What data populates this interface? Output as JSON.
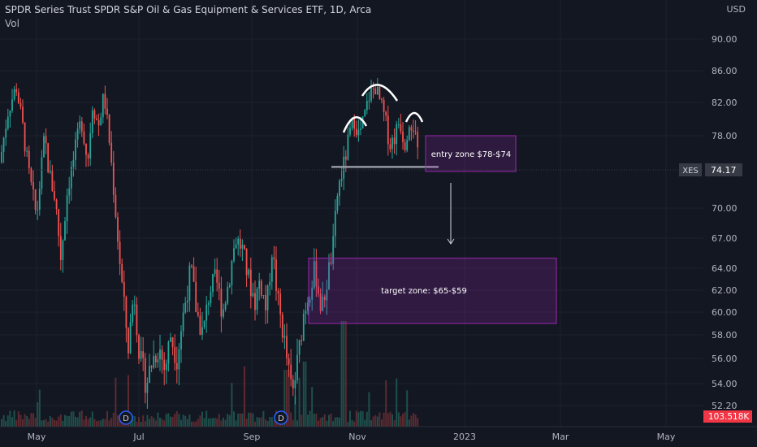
{
  "header": {
    "title": "SPDR Series Trust SPDR S&P Oil & Gas Equipment & Services ETF, 1D, Arca",
    "volume_label": "Vol",
    "currency": "USD"
  },
  "chart_data": {
    "type": "candlestick",
    "symbol": "XES",
    "last_price_label": "74.17",
    "last_price": 74.17,
    "volume_last_label": "103.518K",
    "y_ticks": [
      "90.00",
      "86.00",
      "82.00",
      "78.00",
      "70.00",
      "67.00",
      "64.00",
      "62.00",
      "60.00",
      "58.00",
      "56.00",
      "54.00",
      "52.20"
    ],
    "y_tick_values": [
      90,
      86,
      82,
      78,
      70,
      67,
      64,
      62,
      60,
      58,
      56,
      54,
      52.2
    ],
    "x_ticks": [
      "May",
      "Jul",
      "Sep",
      "Nov",
      "2023",
      "Mar",
      "May"
    ],
    "dividend_marker": "D",
    "annotations": {
      "entry_zone": {
        "label": "entry zone $78-$74",
        "high": 78,
        "low": 74
      },
      "target_zone": {
        "label": "target zone: $65-$59",
        "high": 65,
        "low": 59
      },
      "neckline": 74.5
    },
    "colors": {
      "up": "#26a69a",
      "down": "#ef5350",
      "zone": "#9c27b0",
      "bg": "#131722",
      "price_tag": "#363a45",
      "volume_tag": "#f23645"
    }
  }
}
